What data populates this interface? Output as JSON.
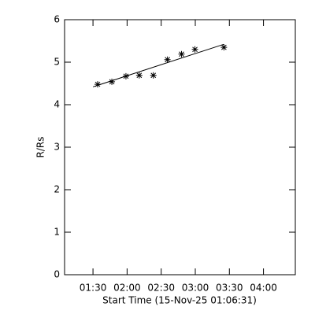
{
  "chart_data": {
    "type": "scatter",
    "x_label": "Start Time (15-Nov-25 01:06:31)",
    "y_label": "R/Rs",
    "x": [
      94.1,
      106.6,
      119,
      130.7,
      143.1,
      155.5,
      167.9,
      179.7,
      205.2
    ],
    "values": [
      4.48,
      4.54,
      4.67,
      4.69,
      4.69,
      5.06,
      5.19,
      5.3,
      5.35
    ],
    "fit": {
      "x": [
        90,
        205
      ],
      "values": [
        4.42,
        5.42
      ]
    },
    "color": "#000000",
    "xlim": [
      65,
      268
    ],
    "xticks": [
      {
        "value": 90,
        "label": "01:30"
      },
      {
        "value": 120,
        "label": "02:00"
      },
      {
        "value": 150,
        "label": "02:30"
      },
      {
        "value": 180,
        "label": "03:00"
      },
      {
        "value": 210,
        "label": "03:30"
      },
      {
        "value": 240,
        "label": "04:00"
      }
    ],
    "ylim": [
      0,
      6
    ],
    "yticks": [
      0,
      1,
      2,
      3,
      4,
      5,
      6
    ]
  }
}
